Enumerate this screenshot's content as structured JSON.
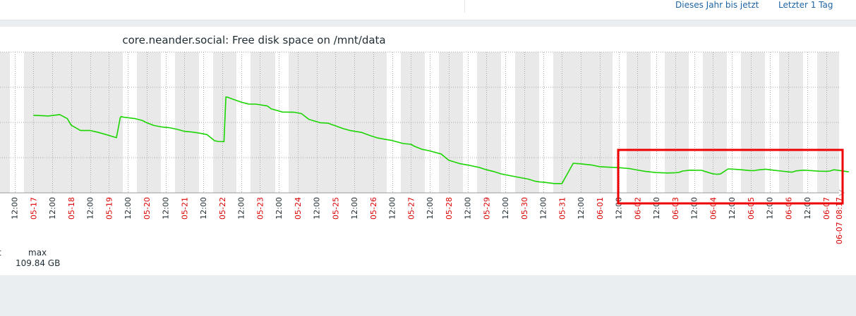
{
  "quick_links": {
    "this_year": "Dieses Jahr bis jetzt",
    "last_day": "Letzter 1 Tag"
  },
  "legend": {
    "min_header_partial": "t",
    "max_header": "max",
    "max_value": "109.84 GB"
  },
  "colors": {
    "line": "#1bd500",
    "weekend_band": "#e9e9e9",
    "date_label": "#dc0000",
    "time_label": "#1f2c33",
    "highlight_box": "#ee0000"
  },
  "chart_data": {
    "type": "line",
    "title": "core.neander.social: Free disk space on /mnt/data",
    "xlabel": "",
    "ylabel": "",
    "y_axis": "not visible (cropped)",
    "grid": true,
    "x_tick_labels": [
      {
        "label": "12:00",
        "kind": "time"
      },
      {
        "label": "05-17",
        "kind": "date"
      },
      {
        "label": "12:00",
        "kind": "time"
      },
      {
        "label": "05-18",
        "kind": "date"
      },
      {
        "label": "12:00",
        "kind": "time"
      },
      {
        "label": "05-19",
        "kind": "date"
      },
      {
        "label": "12:00",
        "kind": "time"
      },
      {
        "label": "05-20",
        "kind": "date"
      },
      {
        "label": "12:00",
        "kind": "time"
      },
      {
        "label": "05-21",
        "kind": "date"
      },
      {
        "label": "12:00",
        "kind": "time"
      },
      {
        "label": "05-22",
        "kind": "date"
      },
      {
        "label": "12:00",
        "kind": "time"
      },
      {
        "label": "05-23",
        "kind": "date"
      },
      {
        "label": "12:00",
        "kind": "time"
      },
      {
        "label": "05-24",
        "kind": "date"
      },
      {
        "label": "12:00",
        "kind": "time"
      },
      {
        "label": "05-25",
        "kind": "date"
      },
      {
        "label": "12:00",
        "kind": "time"
      },
      {
        "label": "05-26",
        "kind": "date"
      },
      {
        "label": "12:00",
        "kind": "time"
      },
      {
        "label": "05-27",
        "kind": "date"
      },
      {
        "label": "12:00",
        "kind": "time"
      },
      {
        "label": "05-28",
        "kind": "date"
      },
      {
        "label": "12:00",
        "kind": "time"
      },
      {
        "label": "05-29",
        "kind": "date"
      },
      {
        "label": "12:00",
        "kind": "time"
      },
      {
        "label": "05-30",
        "kind": "date"
      },
      {
        "label": "12:00",
        "kind": "time"
      },
      {
        "label": "05-31",
        "kind": "date"
      },
      {
        "label": "12:00",
        "kind": "time"
      },
      {
        "label": "06-01",
        "kind": "date"
      },
      {
        "label": "12:00",
        "kind": "time"
      },
      {
        "label": "06-02",
        "kind": "date"
      },
      {
        "label": "12:00",
        "kind": "time"
      },
      {
        "label": "06-03",
        "kind": "date"
      },
      {
        "label": "12:00",
        "kind": "time"
      },
      {
        "label": "06-04",
        "kind": "date"
      },
      {
        "label": "12:00",
        "kind": "time"
      },
      {
        "label": "06-05",
        "kind": "date"
      },
      {
        "label": "12:00",
        "kind": "time"
      },
      {
        "label": "06-06",
        "kind": "date"
      },
      {
        "label": "12:00",
        "kind": "time"
      },
      {
        "label": "06-07",
        "kind": "date"
      },
      {
        "label": "06-07 08:17",
        "kind": "date"
      }
    ],
    "series": [
      {
        "name": "",
        "x": [
          0.0,
          0.8,
          1.4,
          1.8,
          2.0,
          2.5,
          3.0,
          3.4,
          3.8,
          4.4,
          4.6,
          4.65,
          4.8,
          5.4,
          5.8,
          6.0,
          6.4,
          6.8,
          7.2,
          7.6,
          8.0,
          8.4,
          8.8,
          9.2,
          9.6,
          9.8,
          10.1,
          10.2,
          10.3,
          10.6,
          11.0,
          11.4,
          11.8,
          12.4,
          12.6,
          13.2,
          13.8,
          14.2,
          14.6,
          15.2,
          15.6,
          16.0,
          16.4,
          16.8,
          17.4,
          17.8,
          18.2,
          18.6,
          19.0,
          19.6,
          20.0,
          20.2,
          20.6,
          21.0,
          21.6,
          22.0,
          22.6,
          23.0,
          23.6,
          24.0,
          24.4,
          24.8,
          25.4,
          25.8,
          26.2,
          26.6,
          26.8,
          27.0,
          27.6,
          28.0,
          28.6,
          29.0,
          29.6,
          30.0,
          30.4,
          31.0,
          31.6,
          32.0,
          32.4,
          33.0,
          33.6,
          34.0,
          34.2,
          34.4,
          34.8,
          35.4,
          35.6,
          36.0,
          36.2,
          36.4,
          36.8,
          37.2,
          37.6,
          38.0,
          38.2,
          38.4,
          38.8,
          39.2,
          39.6,
          40.0,
          40.2,
          40.4,
          40.8,
          41.2,
          41.6,
          42.0,
          42.2,
          42.4,
          42.8,
          43.2
        ],
        "values": [
          0.551,
          0.546,
          0.556,
          0.527,
          0.481,
          0.443,
          0.443,
          0.431,
          0.416,
          0.392,
          0.532,
          0.542,
          0.537,
          0.527,
          0.513,
          0.498,
          0.478,
          0.468,
          0.463,
          0.452,
          0.437,
          0.432,
          0.424,
          0.414,
          0.37,
          0.365,
          0.364,
          0.681,
          0.679,
          0.664,
          0.645,
          0.631,
          0.63,
          0.617,
          0.597,
          0.574,
          0.573,
          0.563,
          0.522,
          0.498,
          0.495,
          0.476,
          0.457,
          0.442,
          0.429,
          0.409,
          0.391,
          0.381,
          0.372,
          0.35,
          0.345,
          0.33,
          0.309,
          0.298,
          0.276,
          0.232,
          0.207,
          0.198,
          0.181,
          0.164,
          0.151,
          0.134,
          0.118,
          0.108,
          0.098,
          0.082,
          0.078,
          0.076,
          0.066,
          0.066,
          0.21,
          0.206,
          0.197,
          0.186,
          0.183,
          0.179,
          0.172,
          0.162,
          0.153,
          0.144,
          0.141,
          0.143,
          0.145,
          0.155,
          0.161,
          0.16,
          0.151,
          0.135,
          0.132,
          0.134,
          0.17,
          0.167,
          0.163,
          0.158,
          0.158,
          0.163,
          0.168,
          0.161,
          0.155,
          0.149,
          0.147,
          0.156,
          0.161,
          0.158,
          0.154,
          0.153,
          0.155,
          0.164,
          0.157,
          0.149
        ]
      }
    ]
  }
}
